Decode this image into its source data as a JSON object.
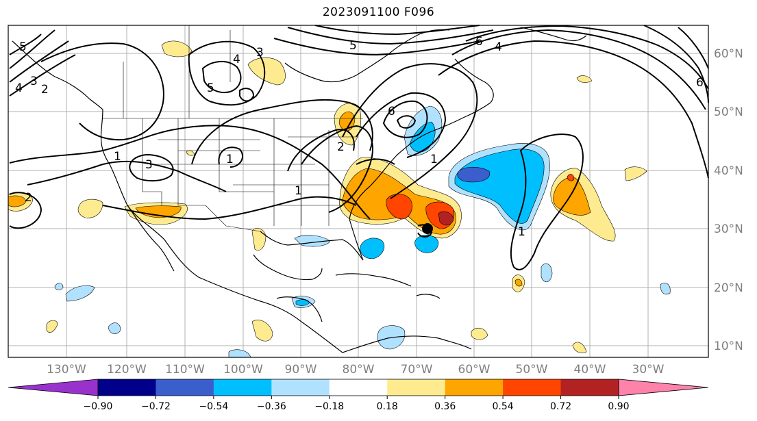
{
  "title": "2023091100 F096",
  "map": {
    "lon_ticks": [
      "130°W",
      "120°W",
      "110°W",
      "100°W",
      "90°W",
      "80°W",
      "70°W",
      "60°W",
      "50°W",
      "40°W",
      "30°W"
    ],
    "lat_ticks": [
      "60°N",
      "50°N",
      "40°N",
      "30°N",
      "20°N",
      "10°N"
    ],
    "contour_labels": [
      "5",
      "4",
      "3",
      "2",
      "1",
      "4",
      "3",
      "5",
      "1",
      "1",
      "3",
      "2",
      "6",
      "5",
      "6",
      "4",
      "6",
      "1",
      "1",
      "2"
    ]
  },
  "colorbar": {
    "colors": [
      "#9932cc",
      "#00008b",
      "#3a5fcd",
      "#00bfff",
      "#b0e2ff",
      "#ffffff",
      "#ffeb8f",
      "#ffa500",
      "#ff4500",
      "#b22222",
      "#ff82ab"
    ],
    "tick_labels": [
      "−0.90",
      "−0.72",
      "−0.54",
      "−0.36",
      "−0.18",
      "0.18",
      "0.36",
      "0.54",
      "0.72",
      "0.90"
    ]
  }
}
